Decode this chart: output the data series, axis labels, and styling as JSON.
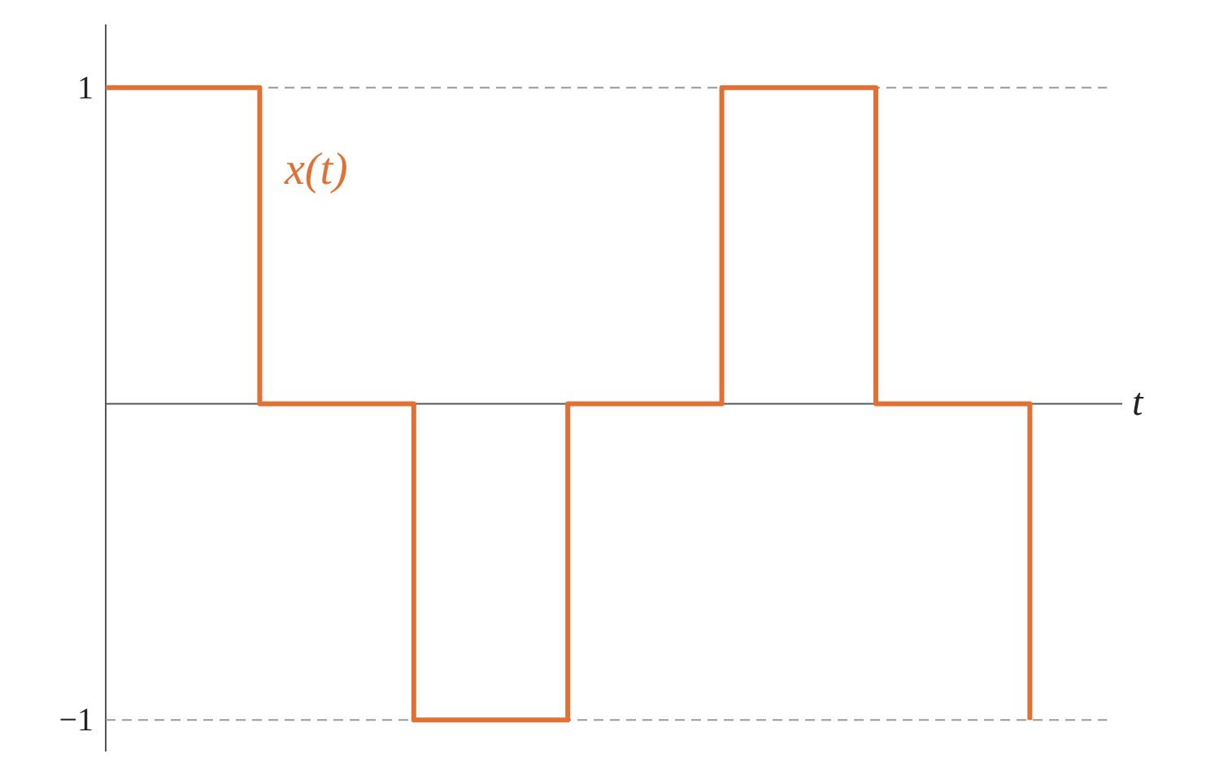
{
  "chart_data": {
    "type": "step",
    "categories": [
      null,
      null,
      null,
      null,
      null,
      null,
      null
    ],
    "series": [
      {
        "color": "#e07033",
        "values": [
          1,
          0,
          -1,
          0,
          1,
          0,
          -1
        ]
      }
    ],
    "xlabel": "t",
    "ylim": [
      -1.1,
      1.2
    ],
    "yticks": [
      1,
      {
        "value": -1,
        "label": "−1"
      }
    ],
    "tick_labels": "y",
    "ref_lines": [
      {
        "axis": "y",
        "value": 1,
        "color": "#999999",
        "line_style": "dashed"
      },
      {
        "axis": "y",
        "value": -1,
        "color": "#999999",
        "line_style": "dashed"
      }
    ],
    "annotations": [
      "x(t)"
    ],
    "grid": false,
    "line_style": "solid",
    "marker": "none"
  }
}
